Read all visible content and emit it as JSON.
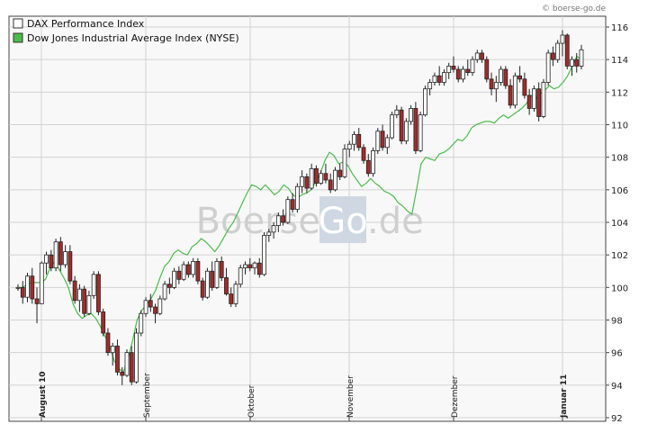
{
  "credit": "© boerse-go.de",
  "watermark": {
    "part1": "Boerse",
    "part2": "Go",
    "part3": ".de"
  },
  "chart_data": {
    "type": "candlestick",
    "grid": true,
    "legend_placement": "top-left",
    "ylim": [
      92,
      117
    ],
    "yticks": [
      92,
      94,
      96,
      98,
      100,
      102,
      104,
      106,
      108,
      110,
      112,
      114,
      116
    ],
    "xticks": [
      {
        "label": "August 10",
        "date": "2010-08-02",
        "bold": true
      },
      {
        "label": "September",
        "date": "2010-09-01",
        "bold": false
      },
      {
        "label": "Oktober",
        "date": "2010-10-01",
        "bold": false
      },
      {
        "label": "November",
        "date": "2010-11-01",
        "bold": false
      },
      {
        "label": "Dezember",
        "date": "2010-12-01",
        "bold": false
      },
      {
        "label": "Januar 11",
        "date": "2011-01-03",
        "bold": true
      }
    ],
    "series": [
      {
        "name": "DAX Performance Index",
        "type": "candlestick",
        "up_color": "#ffffff",
        "down_color": "#a52a2a",
        "ohlc": [
          [
            100.0,
            100.2,
            99.8,
            100.0
          ],
          [
            100.0,
            100.4,
            99.0,
            99.4
          ],
          [
            99.4,
            100.9,
            99.1,
            100.7
          ],
          [
            100.7,
            101.2,
            99.0,
            99.3
          ],
          [
            99.3,
            100.0,
            97.8,
            99.0
          ],
          [
            99.0,
            101.6,
            99.0,
            101.5
          ],
          [
            101.5,
            102.2,
            100.8,
            102.0
          ],
          [
            102.0,
            102.3,
            101.0,
            101.2
          ],
          [
            101.2,
            103.0,
            101.0,
            102.8
          ],
          [
            102.8,
            103.1,
            101.0,
            101.4
          ],
          [
            101.4,
            102.6,
            101.2,
            102.2
          ],
          [
            102.2,
            102.6,
            100.2,
            100.4
          ],
          [
            100.4,
            100.7,
            99.0,
            99.2
          ],
          [
            99.2,
            100.2,
            98.5,
            99.9
          ],
          [
            99.9,
            100.1,
            98.2,
            98.4
          ],
          [
            98.4,
            99.8,
            98.3,
            99.5
          ],
          [
            99.5,
            101.0,
            99.3,
            100.8
          ],
          [
            100.8,
            101.0,
            98.3,
            98.5
          ],
          [
            98.5,
            98.7,
            97.0,
            97.2
          ],
          [
            97.2,
            97.5,
            95.8,
            96.0
          ],
          [
            96.0,
            96.6,
            95.2,
            96.4
          ],
          [
            96.4,
            96.8,
            94.6,
            94.8
          ],
          [
            94.8,
            95.1,
            94.0,
            94.6
          ],
          [
            94.6,
            96.2,
            94.5,
            96.0
          ],
          [
            96.0,
            96.4,
            94.0,
            94.2
          ],
          [
            94.2,
            97.5,
            94.1,
            97.2
          ],
          [
            97.2,
            98.6,
            97.0,
            98.4
          ],
          [
            98.4,
            99.4,
            98.2,
            99.2
          ],
          [
            99.2,
            99.6,
            98.5,
            98.8
          ],
          [
            98.8,
            99.0,
            97.8,
            98.4
          ],
          [
            98.4,
            99.5,
            98.3,
            99.3
          ],
          [
            99.3,
            100.4,
            99.2,
            100.2
          ],
          [
            100.2,
            100.6,
            99.6,
            100.0
          ],
          [
            100.0,
            101.2,
            99.9,
            101.0
          ],
          [
            101.0,
            101.3,
            100.2,
            100.5
          ],
          [
            100.5,
            101.6,
            100.4,
            101.4
          ],
          [
            101.4,
            101.6,
            100.6,
            100.8
          ],
          [
            100.8,
            101.8,
            100.6,
            101.6
          ],
          [
            101.6,
            101.8,
            100.2,
            100.4
          ],
          [
            100.4,
            100.6,
            99.2,
            99.4
          ],
          [
            99.4,
            101.2,
            99.3,
            101.0
          ],
          [
            101.0,
            101.6,
            99.8,
            100.0
          ],
          [
            100.0,
            101.8,
            99.9,
            101.6
          ],
          [
            101.6,
            101.9,
            100.4,
            100.6
          ],
          [
            100.6,
            101.2,
            99.5,
            99.6
          ],
          [
            99.6,
            100.0,
            98.8,
            99.0
          ],
          [
            99.0,
            100.4,
            98.8,
            100.2
          ],
          [
            100.2,
            101.4,
            100.0,
            101.2
          ],
          [
            101.2,
            101.6,
            100.8,
            101.4
          ],
          [
            101.4,
            101.8,
            101.0,
            101.2
          ],
          [
            101.2,
            101.6,
            100.8,
            101.5
          ],
          [
            101.5,
            101.8,
            100.6,
            100.8
          ],
          [
            100.8,
            103.4,
            100.7,
            103.2
          ],
          [
            103.2,
            103.6,
            102.8,
            103.4
          ],
          [
            103.4,
            104.0,
            103.0,
            103.8
          ],
          [
            103.8,
            104.6,
            103.4,
            104.4
          ],
          [
            104.4,
            104.8,
            103.8,
            104.0
          ],
          [
            104.0,
            105.6,
            103.9,
            105.4
          ],
          [
            105.4,
            105.8,
            104.6,
            104.8
          ],
          [
            104.8,
            106.4,
            104.6,
            106.2
          ],
          [
            106.2,
            107.2,
            105.8,
            106.8
          ],
          [
            106.8,
            107.0,
            105.8,
            106.1
          ],
          [
            106.1,
            107.6,
            106.0,
            107.3
          ],
          [
            107.3,
            107.5,
            106.2,
            106.4
          ],
          [
            106.4,
            107.2,
            106.3,
            107.0
          ],
          [
            107.0,
            107.6,
            106.4,
            106.6
          ],
          [
            106.6,
            107.0,
            105.8,
            106.0
          ],
          [
            106.0,
            107.4,
            105.9,
            107.2
          ],
          [
            107.2,
            107.6,
            106.6,
            106.8
          ],
          [
            106.8,
            108.8,
            106.7,
            108.5
          ],
          [
            108.5,
            109.0,
            108.0,
            108.8
          ],
          [
            108.8,
            109.6,
            108.4,
            109.4
          ],
          [
            109.4,
            109.8,
            108.4,
            108.6
          ],
          [
            108.6,
            108.8,
            107.6,
            107.8
          ],
          [
            107.8,
            108.2,
            106.8,
            107.0
          ],
          [
            107.0,
            108.6,
            106.8,
            108.4
          ],
          [
            108.4,
            109.8,
            108.2,
            109.6
          ],
          [
            109.6,
            110.0,
            108.4,
            108.6
          ],
          [
            108.6,
            109.4,
            108.2,
            109.2
          ],
          [
            109.2,
            110.8,
            109.1,
            110.6
          ],
          [
            110.6,
            111.2,
            110.4,
            110.9
          ],
          [
            110.9,
            111.1,
            108.8,
            109.0
          ],
          [
            109.0,
            110.4,
            108.8,
            110.2
          ],
          [
            110.2,
            111.2,
            110.0,
            111.0
          ],
          [
            111.0,
            111.4,
            108.2,
            108.4
          ],
          [
            108.4,
            110.8,
            108.3,
            110.6
          ],
          [
            110.6,
            112.4,
            110.5,
            112.2
          ],
          [
            112.2,
            112.8,
            111.8,
            112.6
          ],
          [
            112.6,
            113.2,
            112.4,
            113.0
          ],
          [
            113.0,
            113.6,
            112.4,
            112.6
          ],
          [
            112.6,
            113.4,
            112.4,
            113.2
          ],
          [
            113.2,
            113.8,
            112.8,
            113.6
          ],
          [
            113.6,
            114.2,
            113.2,
            113.4
          ],
          [
            113.4,
            113.6,
            112.6,
            112.8
          ],
          [
            112.8,
            113.6,
            112.6,
            113.4
          ],
          [
            113.4,
            114.0,
            113.0,
            113.2
          ],
          [
            113.2,
            114.2,
            113.0,
            114.0
          ],
          [
            114.0,
            114.6,
            113.8,
            114.4
          ],
          [
            114.4,
            114.6,
            113.8,
            114.0
          ],
          [
            114.0,
            114.2,
            112.6,
            112.8
          ],
          [
            112.8,
            113.2,
            111.8,
            112.2
          ],
          [
            112.2,
            113.0,
            111.4,
            112.6
          ],
          [
            112.6,
            113.6,
            112.4,
            113.4
          ],
          [
            113.4,
            113.6,
            112.2,
            112.4
          ],
          [
            112.4,
            112.8,
            111.0,
            111.2
          ],
          [
            111.2,
            113.2,
            111.0,
            113.0
          ],
          [
            113.0,
            113.6,
            112.6,
            112.8
          ],
          [
            112.8,
            113.2,
            111.6,
            111.8
          ],
          [
            111.8,
            112.2,
            110.6,
            111.0
          ],
          [
            111.0,
            112.4,
            110.8,
            112.2
          ],
          [
            112.2,
            112.6,
            110.2,
            110.5
          ],
          [
            110.5,
            112.8,
            110.4,
            112.6
          ],
          [
            112.6,
            114.6,
            112.4,
            114.4
          ],
          [
            114.4,
            114.8,
            113.6,
            114.0
          ],
          [
            114.0,
            115.2,
            113.8,
            115.0
          ],
          [
            115.0,
            115.8,
            114.2,
            115.5
          ],
          [
            115.5,
            115.6,
            113.4,
            113.6
          ],
          [
            113.6,
            114.2,
            113.0,
            114.0
          ],
          [
            114.0,
            114.4,
            113.2,
            113.6
          ],
          [
            113.6,
            114.9,
            113.4,
            114.6
          ]
        ]
      },
      {
        "name": "Dow Jones Industrial Average Index (NYSE)",
        "type": "line",
        "color": "#4cbb4c",
        "values": [
          100.0,
          100.0,
          100.2,
          100.3,
          100.3,
          100.3,
          100.5,
          101.2,
          101.6,
          101.1,
          100.6,
          100.0,
          99.0,
          98.4,
          98.1,
          98.3,
          98.4,
          98.1,
          97.6,
          97.0,
          96.4,
          95.5,
          95.0,
          94.8,
          95.6,
          96.7,
          98.0,
          98.6,
          98.9,
          99.3,
          99.8,
          100.6,
          101.3,
          101.6,
          102.1,
          102.3,
          102.1,
          102.0,
          102.5,
          102.7,
          103.0,
          102.8,
          102.5,
          102.2,
          102.6,
          103.1,
          103.6,
          104.0,
          104.6,
          105.2,
          105.8,
          106.3,
          106.2,
          106.0,
          106.3,
          106.0,
          105.7,
          105.9,
          106.3,
          106.1,
          105.7,
          105.5,
          105.7,
          105.8,
          106.0,
          106.5,
          107.0,
          107.8,
          108.3,
          108.1,
          107.6,
          107.7,
          107.5,
          107.0,
          106.6,
          106.2,
          106.4,
          106.7,
          106.4,
          106.2,
          105.9,
          105.8,
          105.6,
          105.2,
          105.0,
          104.7,
          104.5,
          106.0,
          107.6,
          108.0,
          107.9,
          107.8,
          108.2,
          108.3,
          108.5,
          108.8,
          109.1,
          109.0,
          109.3,
          109.8,
          110.0,
          110.1,
          110.2,
          110.2,
          110.1,
          110.4,
          110.6,
          110.4,
          110.6,
          110.8,
          111.0,
          111.3,
          111.8,
          111.6,
          111.9,
          112.1,
          112.4,
          112.2,
          112.3,
          112.6,
          113.0,
          113.6,
          114.2,
          114.0
        ]
      }
    ]
  }
}
